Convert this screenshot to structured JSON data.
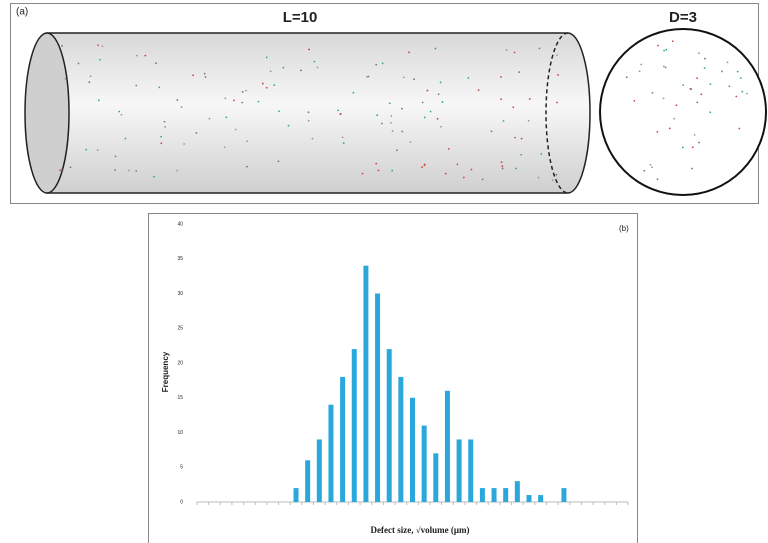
{
  "panel_a": {
    "label": "(a)",
    "length_label": "L=10",
    "diameter_label": "D=3"
  },
  "chart_data": {
    "type": "bar",
    "panel_label": "(b)",
    "x_label": "Defect size, √volume (μm)",
    "y_label": "Frequency",
    "categories": [
      null,
      null,
      null,
      null,
      null,
      null,
      null,
      null,
      null,
      null,
      null,
      null,
      null,
      null,
      null,
      null,
      null,
      null,
      null,
      null,
      null,
      null,
      null,
      null,
      null,
      null,
      null,
      null,
      null,
      null,
      null,
      null,
      null,
      null,
      null,
      null,
      null
    ],
    "values": [
      0,
      0,
      0,
      0,
      0,
      0,
      0,
      0,
      2,
      6,
      9,
      14,
      18,
      22,
      34,
      30,
      22,
      18,
      15,
      11,
      7,
      16,
      9,
      9,
      2,
      2,
      2,
      3,
      1,
      1,
      0,
      2,
      0,
      0,
      0,
      0,
      0
    ],
    "color": "#2aa8dc",
    "ylim": [
      0,
      40
    ],
    "yticks": [
      0,
      5,
      10,
      15,
      20,
      25,
      30,
      35,
      40
    ],
    "grid": false
  }
}
